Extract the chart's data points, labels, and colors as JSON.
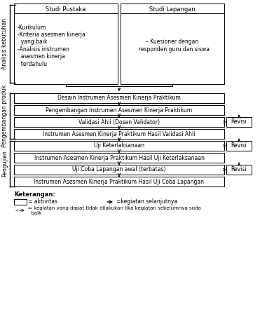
{
  "bg_color": "#ffffff",
  "label_analisis": "Analisis kebutuhan",
  "label_pengembangan": "Pengembangan produk",
  "label_pengujian": "Pengujian",
  "top_left_title": "Studi Pustaka",
  "top_left_body": "-Kurikulum\n-Kriteria asesmen kinerja\n  yang baik\n-Analisis instrumen\n  asesmen kinerja\n  terdahulu",
  "top_right_title": "Studi Lapangan",
  "top_right_body": "– Kuesioner dengan\n  responden guru dan siswa",
  "box1": "Desain Instrumen Asesmen Kinerja Praktikum",
  "box2": "Pengembangan Instrumen Asesmen Kinerja Praktikum",
  "box3": "Validasi Ahli (Dosen Validator)",
  "box3r": "Revisi",
  "box4": "Instrumen Asesmen Kinerja Praktikum Hasil Validasi Ahli",
  "box5": "Uji Keterlaksanaan",
  "box5r": "Revisi",
  "box6": "Instrumen Asesmen Kinerja Praktikum Hasil Uji Keterlaksanaan",
  "box7": "Uji Coba Lapangan awal (terbatas)",
  "box7r": "Revisi",
  "box8": "Instrumen Asesmen Kinerja Praktikum Hasil Uji Coba Lapangan",
  "legend_box_label": "= aktivitas",
  "legend_arrow_label": "=kegiatan selanjutnya",
  "legend_dash_label": "= kegiatan yang dapat tidak dilakukan jika kegiatan sebelumnya suda\n  baik",
  "keterangan": "Keterangan:"
}
